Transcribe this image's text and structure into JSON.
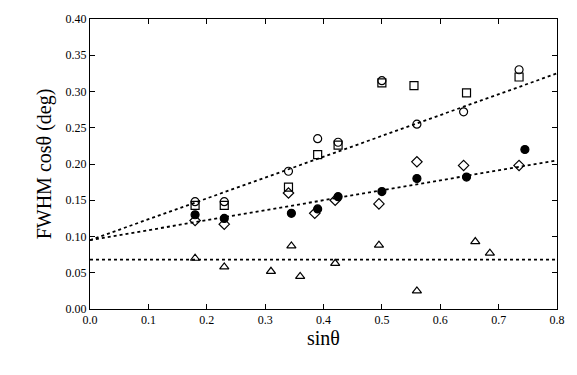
{
  "chart_data": {
    "type": "scatter",
    "x_label": "sinθ",
    "y_label": "FWHM cosθ (deg)",
    "xlim": [
      0,
      0.8
    ],
    "ylim": [
      0,
      0.4
    ],
    "xticks": [
      {
        "value": 0,
        "label": "0.0"
      },
      {
        "value": 0.1,
        "label": "0.1"
      },
      {
        "value": 0.2,
        "label": "0.2"
      },
      {
        "value": 0.3,
        "label": "0.3"
      },
      {
        "value": 0.4,
        "label": "0.4"
      },
      {
        "value": 0.5,
        "label": "0.5"
      },
      {
        "value": 0.6,
        "label": "0.6"
      },
      {
        "value": 0.7,
        "label": "0.7"
      },
      {
        "value": 0.8,
        "label": "0.8"
      }
    ],
    "yticks": [
      {
        "value": 0,
        "label": "0.00"
      },
      {
        "value": 0.05,
        "label": "0.05"
      },
      {
        "value": 0.1,
        "label": "0.10"
      },
      {
        "value": 0.15,
        "label": "0.15"
      },
      {
        "value": 0.2,
        "label": "0.20"
      },
      {
        "value": 0.25,
        "label": "0.25"
      },
      {
        "value": 0.3,
        "label": "0.30"
      },
      {
        "value": 0.35,
        "label": "0.35"
      },
      {
        "value": 0.4,
        "label": "0.40"
      }
    ],
    "grid": false,
    "series": [
      {
        "type": "scatter",
        "marker": "circle-open",
        "color": "#000000",
        "x": [
          0.18,
          0.23,
          0.34,
          0.39,
          0.425,
          0.5,
          0.56,
          0.64,
          0.735
        ],
        "values": [
          0.148,
          0.148,
          0.19,
          0.235,
          0.23,
          0.315,
          0.255,
          0.272,
          0.33
        ]
      },
      {
        "type": "scatter",
        "marker": "square-open",
        "color": "#000000",
        "x": [
          0.18,
          0.23,
          0.34,
          0.39,
          0.425,
          0.5,
          0.555,
          0.645,
          0.735
        ],
        "values": [
          0.143,
          0.143,
          0.168,
          0.213,
          0.226,
          0.312,
          0.308,
          0.298,
          0.32
        ]
      },
      {
        "type": "scatter",
        "marker": "circle",
        "color": "#000000",
        "x": [
          0.18,
          0.23,
          0.345,
          0.39,
          0.425,
          0.5,
          0.56,
          0.645,
          0.745
        ],
        "values": [
          0.13,
          0.125,
          0.132,
          0.138,
          0.155,
          0.162,
          0.18,
          0.182,
          0.22
        ]
      },
      {
        "type": "scatter",
        "marker": "diamond-open",
        "color": "#000000",
        "x": [
          0.18,
          0.23,
          0.34,
          0.385,
          0.42,
          0.495,
          0.56,
          0.64,
          0.735
        ],
        "values": [
          0.122,
          0.117,
          0.16,
          0.132,
          0.15,
          0.145,
          0.203,
          0.198,
          0.198
        ]
      },
      {
        "type": "scatter",
        "marker": "triangle-up-open",
        "color": "#000000",
        "x": [
          0.18,
          0.23,
          0.31,
          0.345,
          0.36,
          0.42,
          0.495,
          0.56,
          0.66,
          0.685
        ],
        "values": [
          0.07,
          0.058,
          0.052,
          0.087,
          0.045,
          0.063,
          0.088,
          0.025,
          0.093,
          0.077
        ]
      },
      {
        "type": "line",
        "line_style": "dot",
        "color": "#000000",
        "x": [
          0,
          0.8
        ],
        "values": [
          0.095,
          0.325
        ]
      },
      {
        "type": "line",
        "line_style": "dot",
        "color": "#000000",
        "x": [
          0,
          0.8
        ],
        "values": [
          0.095,
          0.205
        ]
      },
      {
        "type": "line",
        "line_style": "dot",
        "color": "#000000",
        "x": [
          0,
          0.8
        ],
        "values": [
          0.068,
          0.068
        ]
      }
    ]
  }
}
